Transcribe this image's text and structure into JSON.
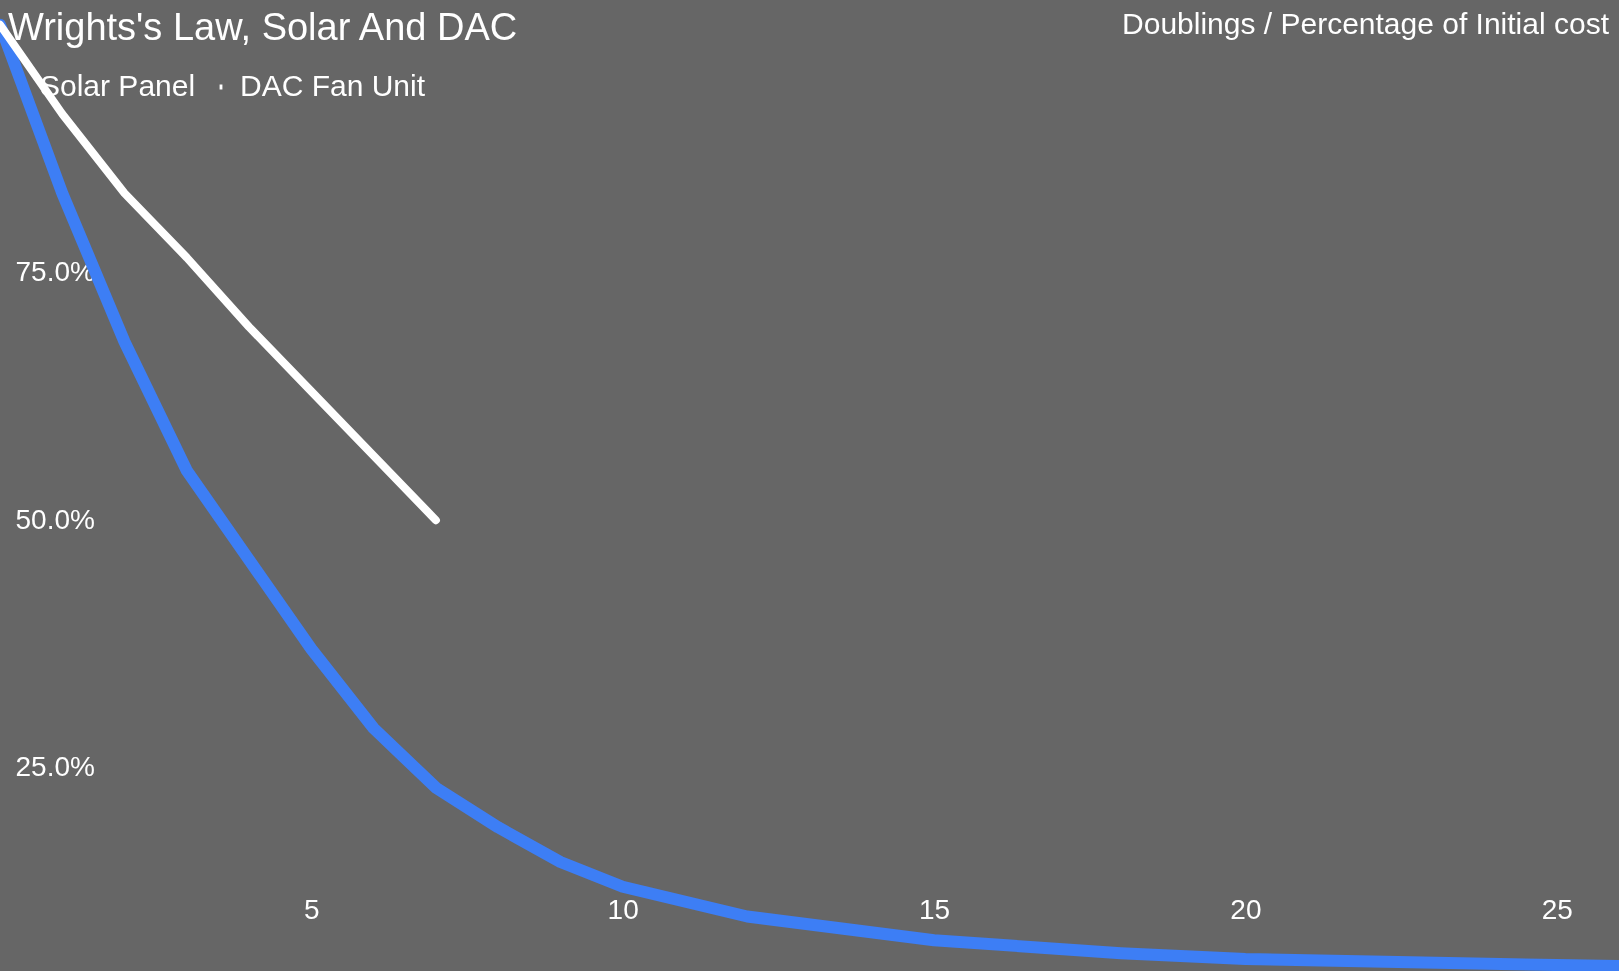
{
  "chart_data": {
    "type": "line",
    "title": "Wrights's Law, Solar And DAC",
    "annotations": [
      "Doublings / Percentage of Initial cost"
    ],
    "series": [
      {
        "name": "Solar Panel",
        "color": "#3d7ef5",
        "x": [
          0,
          1,
          2,
          3,
          4,
          5,
          6,
          7,
          8,
          9,
          10,
          12,
          15,
          18,
          20,
          25,
          26
        ],
        "values": [
          100,
          83,
          68,
          55,
          46,
          37,
          29,
          23,
          19,
          15.5,
          13,
          10,
          7.6,
          6.3,
          5.7,
          5.1,
          5
        ]
      },
      {
        "name": "DAC Fan Unit",
        "color": "#ffffff",
        "x": [
          0,
          1,
          2,
          3,
          4,
          5,
          6,
          7
        ],
        "values": [
          100,
          91,
          83,
          76.5,
          69.5,
          63,
          56.5,
          50
        ]
      }
    ],
    "xlim": [
      0,
      26
    ],
    "xticks": [
      5,
      10,
      15,
      20,
      25
    ],
    "ylim": [
      4.5,
      102.5
    ],
    "yticks": [
      {
        "value": 25,
        "label": "25.0%"
      },
      {
        "value": 50,
        "label": "50.0%"
      },
      {
        "value": 75,
        "label": "75.0%"
      }
    ],
    "grid": false,
    "legend": "top left",
    "line_style": "solid",
    "marker": "none"
  }
}
